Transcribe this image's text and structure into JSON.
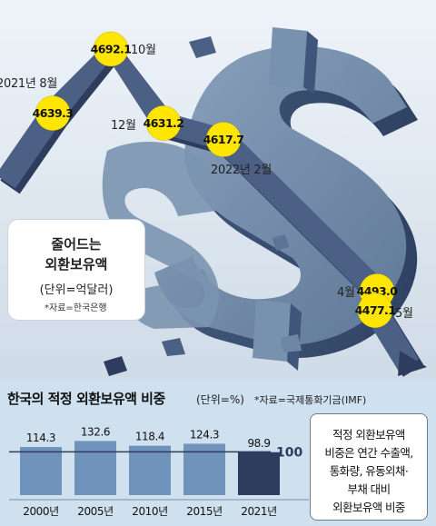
{
  "top_chart": {
    "title_line1": "줄어드는",
    "title_line2": "외환보유액",
    "unit": "(단위=억달러)",
    "source": "*자료=한국은행",
    "points": [
      {
        "date": "2021년 8월",
        "value": "4639.3"
      },
      {
        "date": "10월",
        "value": "4692.1"
      },
      {
        "date": "12월",
        "value": "4631.2"
      },
      {
        "date": "2022년 2월",
        "value": "4617.7"
      },
      {
        "date": "4월",
        "value": "4493.0"
      },
      {
        "date": "5월",
        "value": "4477.1"
      }
    ]
  },
  "bottom_chart": {
    "title": "한국의 적정 외환보유액 비중",
    "unit": "(단위=%)",
    "source": "*자료=국제통화기금(IMF)",
    "reference_value": "100",
    "note_lines": [
      "적정 외환보유액",
      "비중은 연간 수출액,",
      "통화량, 유동외채·",
      "부채 대비",
      "외환보유액 비중"
    ]
  },
  "chart_data": [
    {
      "type": "line",
      "title": "줄어드는 외환보유액",
      "ylabel": "(단위=억달러)",
      "x": [
        "2021년 8월",
        "10월",
        "12월",
        "2022년 2월",
        "4월",
        "5월"
      ],
      "values": [
        4639.3,
        4692.1,
        4631.2,
        4617.7,
        4493.0,
        4477.1
      ],
      "ylim": [
        4450,
        4710
      ]
    },
    {
      "type": "bar",
      "title": "한국의 적정 외환보유액 비중",
      "ylabel": "(단위=%)",
      "categories": [
        "2000년",
        "2005년",
        "2010년",
        "2015년",
        "2021년"
      ],
      "values": [
        114.3,
        132.6,
        118.4,
        124.3,
        98.9
      ],
      "reference_line": 100,
      "ylim": [
        0,
        145
      ],
      "colors": [
        "#6f93ba",
        "#6f93ba",
        "#6f93ba",
        "#6f93ba",
        "#2e3d5e"
      ]
    }
  ],
  "colors": {
    "line_dark": "#2e3d5e",
    "line_mid": "#4c5f85",
    "marker_yellow": "#ffe600",
    "bar_light": "#6f93ba",
    "bar_highlight": "#2e3d5e",
    "panel_bg": "#cfe0ef",
    "dollar_sign": "#6e87a4"
  }
}
